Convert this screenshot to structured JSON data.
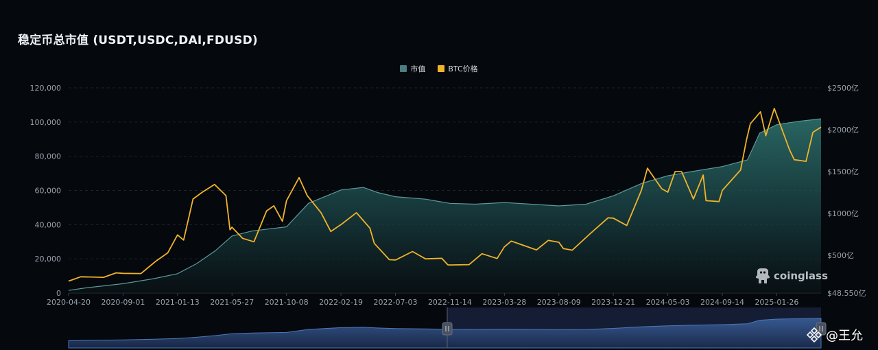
{
  "title": "稳定币总市值 (USDT,USDC,DAI,FDUSD)",
  "watermark": "coinglass",
  "credit": "@王允",
  "colors": {
    "background": "#05080d",
    "market_cap_line": "#5a9a9a",
    "market_cap_fill_top": "#2a6a68",
    "btc_line": "#f0b429",
    "navigator": "#2a3556"
  },
  "chart_data": {
    "type": "area",
    "title": "稳定币总市值 (USDT,USDC,DAI,FDUSD)",
    "x_labels": [
      "2020-04-20",
      "2020-09-01",
      "2021-01-13",
      "2021-05-27",
      "2021-10-08",
      "2022-02-19",
      "2022-07-03",
      "2022-11-14",
      "2023-03-28",
      "2023-08-09",
      "2023-12-21",
      "2024-05-03",
      "2024-09-14",
      "2025-01-26"
    ],
    "y_left": {
      "ticks": [
        "0",
        "20,000",
        "40,000",
        "60,000",
        "80,000",
        "100,000",
        "120,000"
      ],
      "lim": [
        0,
        120000
      ]
    },
    "y_right": {
      "ticks": [
        "$48.550亿",
        "$500亿",
        "$1000亿",
        "$1500亿",
        "$2000亿",
        "$2500亿"
      ],
      "lim": [
        48.55,
        2500
      ]
    },
    "grid": true,
    "legend_position": "top-center",
    "series": [
      {
        "name": "市值",
        "type": "area",
        "axis": "right",
        "color": "#4a7d82",
        "points": [
          [
            "2020-04-20",
            80
          ],
          [
            "2020-06-01",
            110
          ],
          [
            "2020-09-01",
            160
          ],
          [
            "2020-11-15",
            220
          ],
          [
            "2021-01-13",
            280
          ],
          [
            "2021-03-01",
            400
          ],
          [
            "2021-04-15",
            550
          ],
          [
            "2021-05-27",
            730
          ],
          [
            "2021-07-15",
            790
          ],
          [
            "2021-10-08",
            840
          ],
          [
            "2021-12-01",
            1120
          ],
          [
            "2022-02-19",
            1280
          ],
          [
            "2022-04-15",
            1310
          ],
          [
            "2022-05-20",
            1250
          ],
          [
            "2022-07-03",
            1200
          ],
          [
            "2022-09-15",
            1170
          ],
          [
            "2022-11-14",
            1120
          ],
          [
            "2023-01-15",
            1110
          ],
          [
            "2023-03-28",
            1130
          ],
          [
            "2023-06-01",
            1110
          ],
          [
            "2023-08-09",
            1090
          ],
          [
            "2023-10-15",
            1110
          ],
          [
            "2023-12-21",
            1210
          ],
          [
            "2024-03-01",
            1360
          ],
          [
            "2024-05-03",
            1450
          ],
          [
            "2024-07-01",
            1500
          ],
          [
            "2024-09-14",
            1560
          ],
          [
            "2024-11-15",
            1640
          ],
          [
            "2024-12-15",
            1960
          ],
          [
            "2025-01-26",
            2060
          ],
          [
            "2025-03-20",
            2100
          ],
          [
            "2025-05-15",
            2130
          ]
        ]
      },
      {
        "name": "BTC价格",
        "type": "line",
        "axis": "left",
        "color": "#f0b429",
        "points": [
          [
            "2020-04-20",
            7000
          ],
          [
            "2020-05-20",
            9500
          ],
          [
            "2020-07-15",
            9200
          ],
          [
            "2020-08-15",
            11800
          ],
          [
            "2020-09-01",
            11500
          ],
          [
            "2020-10-15",
            11400
          ],
          [
            "2020-11-20",
            18500
          ],
          [
            "2020-12-20",
            23500
          ],
          [
            "2021-01-13",
            34000
          ],
          [
            "2021-01-28",
            31000
          ],
          [
            "2021-02-20",
            55000
          ],
          [
            "2021-03-15",
            59000
          ],
          [
            "2021-04-14",
            63500
          ],
          [
            "2021-05-12",
            57000
          ],
          [
            "2021-05-22",
            37000
          ],
          [
            "2021-05-27",
            38500
          ],
          [
            "2021-06-22",
            32000
          ],
          [
            "2021-07-20",
            30000
          ],
          [
            "2021-08-20",
            48000
          ],
          [
            "2021-09-07",
            51000
          ],
          [
            "2021-09-28",
            42000
          ],
          [
            "2021-10-08",
            54000
          ],
          [
            "2021-11-08",
            67500
          ],
          [
            "2021-11-28",
            57000
          ],
          [
            "2022-01-01",
            47000
          ],
          [
            "2022-01-25",
            36000
          ],
          [
            "2022-02-19",
            40000
          ],
          [
            "2022-03-29",
            47000
          ],
          [
            "2022-05-01",
            38000
          ],
          [
            "2022-05-12",
            29000
          ],
          [
            "2022-06-18",
            19500
          ],
          [
            "2022-07-03",
            19300
          ],
          [
            "2022-08-14",
            24300
          ],
          [
            "2022-09-15",
            20000
          ],
          [
            "2022-10-25",
            20300
          ],
          [
            "2022-11-09",
            16500
          ],
          [
            "2022-11-14",
            16400
          ],
          [
            "2022-12-31",
            16600
          ],
          [
            "2023-02-01",
            23000
          ],
          [
            "2023-03-10",
            20200
          ],
          [
            "2023-03-28",
            27000
          ],
          [
            "2023-04-14",
            30400
          ],
          [
            "2023-06-15",
            25200
          ],
          [
            "2023-07-14",
            30800
          ],
          [
            "2023-08-09",
            29700
          ],
          [
            "2023-08-20",
            26000
          ],
          [
            "2023-09-11",
            25100
          ],
          [
            "2023-10-24",
            34500
          ],
          [
            "2023-12-08",
            44000
          ],
          [
            "2023-12-21",
            43800
          ],
          [
            "2024-01-23",
            39500
          ],
          [
            "2024-02-28",
            60000
          ],
          [
            "2024-03-14",
            73000
          ],
          [
            "2024-04-18",
            61000
          ],
          [
            "2024-05-03",
            59000
          ],
          [
            "2024-05-21",
            71000
          ],
          [
            "2024-06-06",
            71000
          ],
          [
            "2024-07-05",
            55000
          ],
          [
            "2024-07-29",
            69000
          ],
          [
            "2024-08-05",
            54000
          ],
          [
            "2024-09-06",
            53500
          ],
          [
            "2024-09-14",
            60000
          ],
          [
            "2024-10-29",
            72000
          ],
          [
            "2024-11-13",
            90000
          ],
          [
            "2024-11-22",
            99000
          ],
          [
            "2024-12-17",
            106000
          ],
          [
            "2024-12-30",
            92000
          ],
          [
            "2025-01-20",
            108000
          ],
          [
            "2025-01-26",
            104000
          ],
          [
            "2025-02-26",
            84000
          ],
          [
            "2025-03-10",
            78000
          ],
          [
            "2025-04-08",
            77000
          ],
          [
            "2025-04-25",
            94000
          ],
          [
            "2025-05-15",
            97000
          ]
        ]
      }
    ]
  }
}
